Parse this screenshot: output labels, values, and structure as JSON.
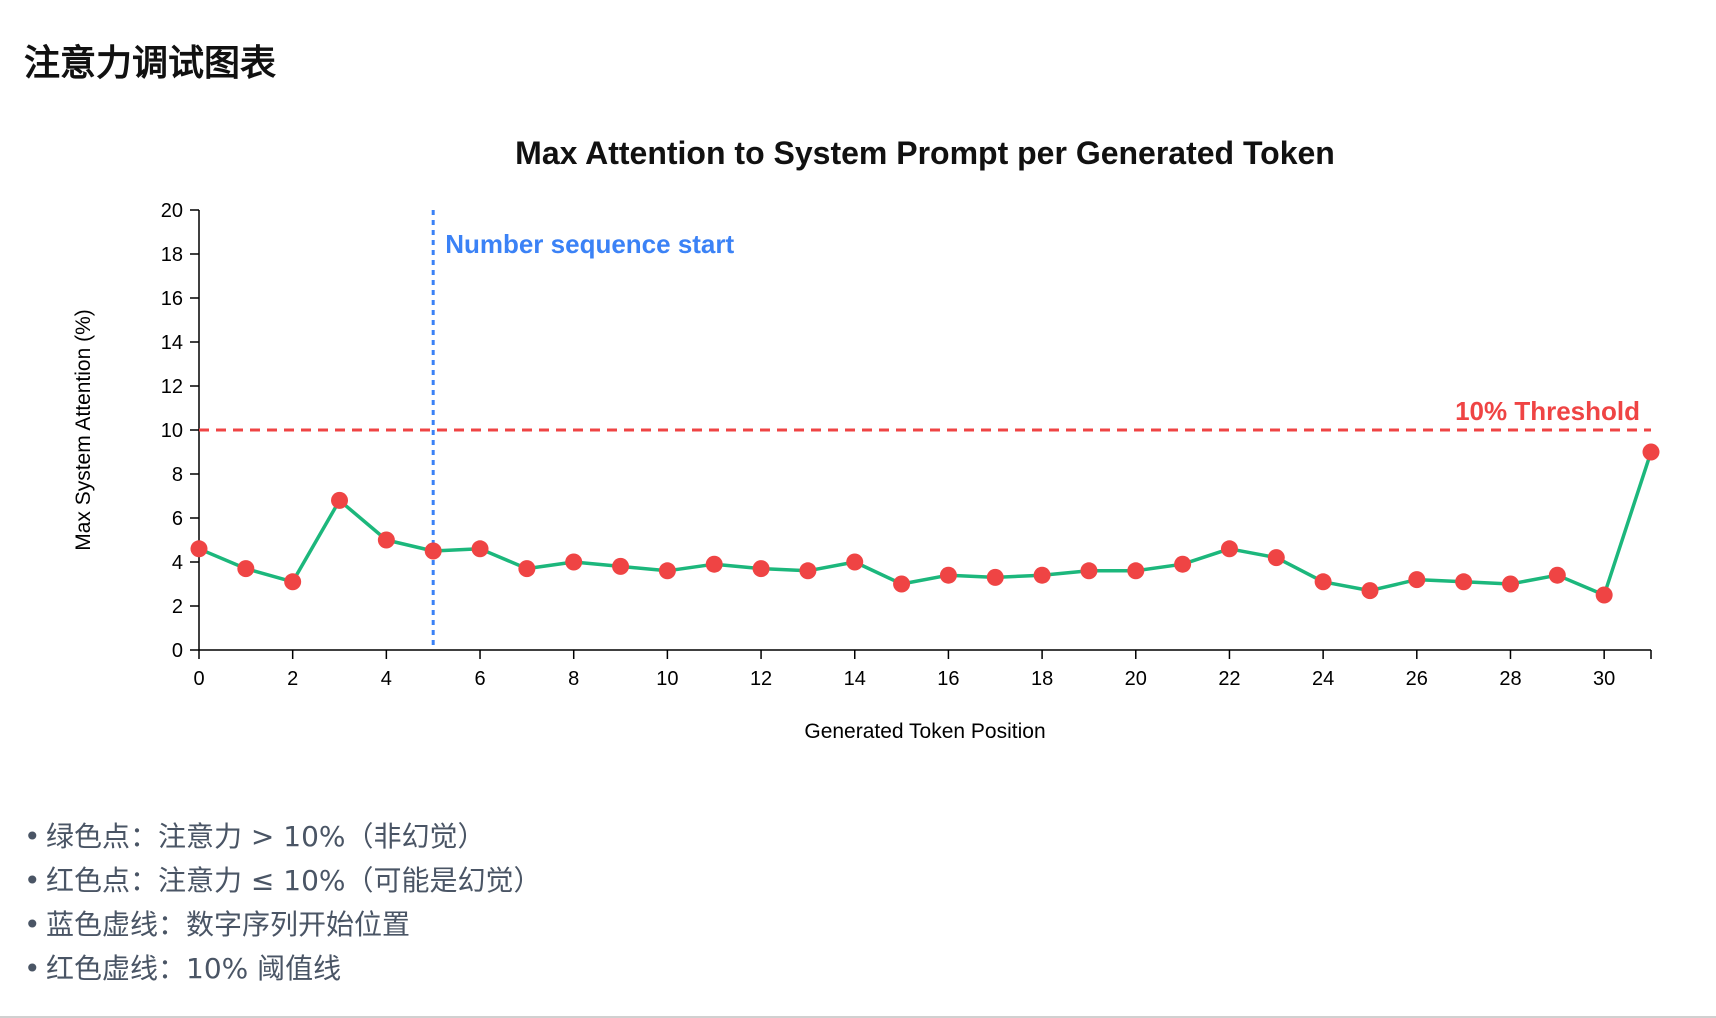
{
  "page": {
    "title": "注意力调试图表"
  },
  "chart_data": {
    "type": "line",
    "title": "Max Attention to System Prompt per Generated Token",
    "xlabel": "Generated Token Position",
    "ylabel": "Max System Attention (%)",
    "xlim": [
      0,
      31
    ],
    "ylim": [
      0,
      20
    ],
    "x_ticks": [
      0,
      2,
      4,
      6,
      8,
      10,
      12,
      14,
      16,
      18,
      20,
      22,
      24,
      26,
      28,
      30
    ],
    "y_ticks": [
      0,
      2,
      4,
      6,
      8,
      10,
      12,
      14,
      16,
      18,
      20
    ],
    "grid": false,
    "x": [
      0,
      1,
      2,
      3,
      4,
      5,
      6,
      7,
      8,
      9,
      10,
      11,
      12,
      13,
      14,
      15,
      16,
      17,
      18,
      19,
      20,
      21,
      22,
      23,
      24,
      25,
      26,
      27,
      28,
      29,
      30,
      31
    ],
    "values": [
      4.6,
      3.7,
      3.1,
      6.8,
      5.0,
      4.5,
      4.6,
      3.7,
      4.0,
      3.8,
      3.6,
      3.9,
      3.7,
      3.6,
      4.0,
      3.0,
      3.4,
      3.3,
      3.4,
      3.6,
      3.6,
      3.9,
      4.6,
      4.2,
      3.1,
      2.7,
      3.2,
      3.1,
      3.0,
      3.4,
      2.5,
      9.0
    ],
    "line_color": "#1cb77c",
    "point_color": "#ef4444",
    "threshold": {
      "value": 10,
      "label": "10% Threshold",
      "color": "#ef4444"
    },
    "marker": {
      "x": 5,
      "label": "Number sequence start",
      "color": "#3b82f6"
    }
  },
  "legend_notes": [
    "绿色点：注意力 > 10%（非幻觉）",
    "红色点：注意力 ≤ 10%（可能是幻觉）",
    "蓝色虚线：数字序列开始位置",
    "红色虚线：10% 阈值线"
  ]
}
